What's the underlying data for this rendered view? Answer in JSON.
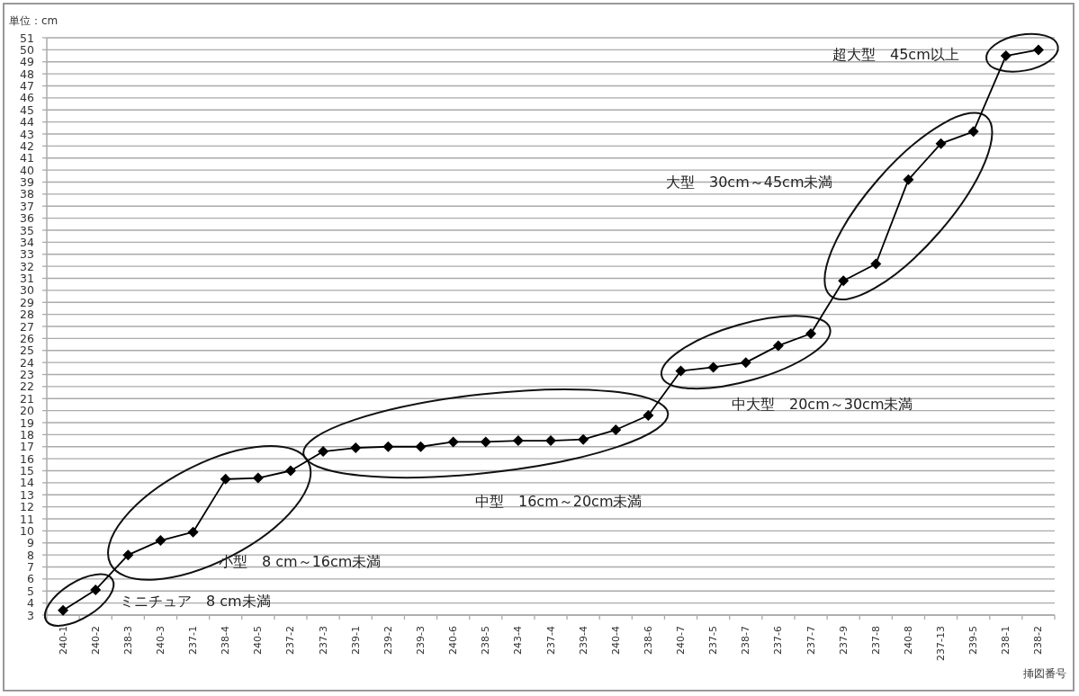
{
  "chart_data": {
    "type": "line",
    "ylabel": "単位：cm",
    "xlabel": "挿図番号",
    "categories": [
      "240-1",
      "240-2",
      "238-3",
      "240-3",
      "237-1",
      "238-4",
      "240-5",
      "237-2",
      "237-3",
      "239-1",
      "239-2",
      "239-3",
      "240-6",
      "238-5",
      "243-4",
      "237-4",
      "239-4",
      "240-4",
      "238-6",
      "240-7",
      "237-5",
      "238-7",
      "237-6",
      "237-7",
      "237-9",
      "237-8",
      "240-8",
      "237-13",
      "239-5",
      "238-1",
      "238-2"
    ],
    "series": [
      {
        "color": "#000000",
        "values": [
          3.4,
          5.1,
          8.0,
          9.2,
          9.9,
          14.3,
          14.4,
          15.0,
          16.6,
          16.9,
          17.0,
          17.0,
          17.4,
          17.4,
          17.5,
          17.5,
          17.6,
          18.4,
          19.6,
          23.3,
          23.6,
          24.0,
          25.4,
          26.4,
          30.8,
          32.2,
          39.2,
          42.2,
          43.2,
          49.5,
          50.0
        ]
      }
    ],
    "ylim": [
      3,
      51
    ],
    "yticks": [
      3,
      4,
      5,
      6,
      7,
      8,
      9,
      10,
      11,
      12,
      13,
      14,
      15,
      16,
      17,
      18,
      19,
      20,
      21,
      22,
      23,
      24,
      25,
      26,
      27,
      28,
      29,
      30,
      31,
      32,
      33,
      34,
      35,
      36,
      37,
      38,
      39,
      40,
      41,
      42,
      43,
      44,
      45,
      46,
      47,
      48,
      49,
      50,
      51
    ],
    "grid": "y",
    "marker": "diamond",
    "line_style": "solid",
    "annotations": [
      "ミニチュア　8 cm未満",
      "小型　8 cm～16cm未満",
      "中型　16cm～20cm未満",
      "中大型　20cm～30cm未満",
      "大型　30cm～45cm未満",
      "超大型　45cm以上"
    ]
  }
}
